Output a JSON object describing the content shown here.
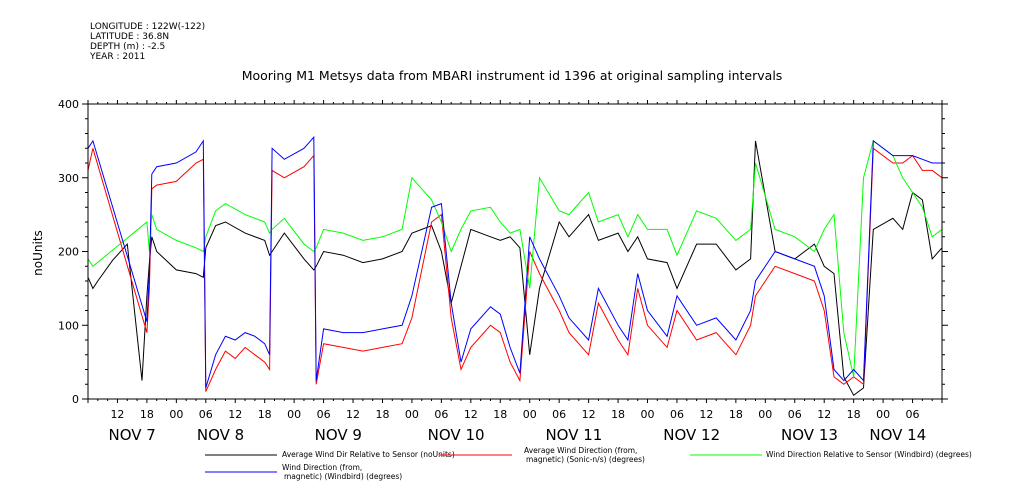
{
  "meta": {
    "longitude": "LONGITUDE : 122W(-122)",
    "latitude": "LATITUDE : 36.8N",
    "depth": "DEPTH (m) : -2.5",
    "year": "YEAR : 2011"
  },
  "chart_data": {
    "type": "line",
    "title": "Mooring M1 Metsys data from MBARI instrument id 1396 at original sampling intervals",
    "ylabel": "noUnits",
    "xlabel": "",
    "ylim": [
      0,
      400
    ],
    "yticks": [
      0,
      100,
      200,
      300,
      400
    ],
    "xlim_hours": [
      0,
      174
    ],
    "x_hour_ticks": [
      {
        "h": 6,
        "label": "12"
      },
      {
        "h": 12,
        "label": "18"
      },
      {
        "h": 18,
        "label": "00"
      },
      {
        "h": 24,
        "label": "06"
      },
      {
        "h": 30,
        "label": "12"
      },
      {
        "h": 36,
        "label": "18"
      },
      {
        "h": 42,
        "label": "00"
      },
      {
        "h": 48,
        "label": "06"
      },
      {
        "h": 54,
        "label": "12"
      },
      {
        "h": 60,
        "label": "18"
      },
      {
        "h": 66,
        "label": "00"
      },
      {
        "h": 72,
        "label": "06"
      },
      {
        "h": 78,
        "label": "12"
      },
      {
        "h": 84,
        "label": "18"
      },
      {
        "h": 90,
        "label": "00"
      },
      {
        "h": 96,
        "label": "06"
      },
      {
        "h": 102,
        "label": "12"
      },
      {
        "h": 108,
        "label": "18"
      },
      {
        "h": 114,
        "label": "00"
      },
      {
        "h": 120,
        "label": "06"
      },
      {
        "h": 126,
        "label": "12"
      },
      {
        "h": 132,
        "label": "18"
      },
      {
        "h": 138,
        "label": "00"
      },
      {
        "h": 144,
        "label": "06"
      },
      {
        "h": 150,
        "label": "12"
      },
      {
        "h": 156,
        "label": "18"
      },
      {
        "h": 162,
        "label": "00"
      },
      {
        "h": 168,
        "label": "06"
      }
    ],
    "day_labels": [
      {
        "h": 9,
        "label": "NOV  7"
      },
      {
        "h": 27,
        "label": "NOV  8"
      },
      {
        "h": 51,
        "label": "NOV  9"
      },
      {
        "h": 75,
        "label": "NOV 10"
      },
      {
        "h": 99,
        "label": "NOV 11"
      },
      {
        "h": 123,
        "label": "NOV 12"
      },
      {
        "h": 147,
        "label": "NOV 13"
      },
      {
        "h": 165,
        "label": "NOV 14"
      }
    ],
    "legend": [
      {
        "label": "Average Wind Dir Relative to Sensor (noUnits)",
        "color": "#000000"
      },
      {
        "label": "Average Wind Direction (from, magnetic) (Sonic-n/s) (degrees)",
        "color": "#ff0000"
      },
      {
        "label": "Wind Direction Relative to Sensor (Windbird) (degrees)",
        "color": "#00ff00"
      },
      {
        "label": "Wind Direction (from, magnetic) (Windbird) (degrees)",
        "color": "#0000ff"
      }
    ],
    "series": [
      {
        "name": "Average Wind Dir Relative to Sensor (noUnits)",
        "color": "#000000",
        "x": [
          0,
          1,
          2,
          5,
          8,
          11,
          12,
          12.5,
          13,
          14,
          18,
          22,
          23.5,
          24,
          26,
          28,
          32,
          36,
          37,
          37.5,
          40,
          44,
          46,
          46.5,
          48,
          52,
          56,
          60,
          64,
          66,
          70,
          72,
          74,
          76,
          78,
          82,
          84,
          86,
          88,
          90,
          92,
          96,
          98,
          102,
          104,
          108,
          110,
          112,
          114,
          118,
          120,
          124,
          128,
          132,
          135,
          136,
          140,
          144,
          148,
          150,
          152,
          154,
          156,
          158,
          160,
          164,
          166,
          168,
          170,
          172,
          174
        ],
        "y": [
          165,
          150,
          160,
          188,
          210,
          25,
          140,
          185,
          220,
          200,
          175,
          170,
          165,
          205,
          235,
          240,
          225,
          215,
          195,
          200,
          225,
          190,
          175,
          180,
          200,
          195,
          185,
          190,
          200,
          225,
          235,
          200,
          130,
          180,
          230,
          220,
          215,
          220,
          205,
          60,
          150,
          240,
          220,
          250,
          215,
          225,
          200,
          220,
          190,
          185,
          150,
          210,
          210,
          175,
          190,
          350,
          200,
          190,
          210,
          180,
          170,
          30,
          5,
          15,
          230,
          245,
          230,
          280,
          270,
          190,
          205
        ]
      },
      {
        "name": "Average Wind Direction (from, magnetic) (Sonic-n/s) (degrees)",
        "color": "#ff0000",
        "x": [
          0,
          1,
          12,
          12.5,
          13,
          14,
          18,
          22,
          23.5,
          24,
          26,
          28,
          30,
          32,
          34,
          36,
          37,
          37.5,
          40,
          44,
          46,
          46.5,
          48,
          52,
          56,
          60,
          64,
          66,
          70,
          72,
          74,
          76,
          78,
          82,
          84,
          86,
          88,
          90,
          92,
          96,
          98,
          102,
          104,
          108,
          110,
          112,
          114,
          118,
          120,
          124,
          128,
          132,
          135,
          136,
          140,
          144,
          148,
          150,
          152,
          154,
          156,
          158,
          160,
          164,
          166,
          168,
          170,
          172,
          174
        ],
        "y": [
          310,
          340,
          90,
          150,
          285,
          290,
          295,
          320,
          325,
          10,
          40,
          65,
          55,
          70,
          60,
          50,
          40,
          310,
          300,
          315,
          330,
          20,
          75,
          70,
          65,
          70,
          75,
          110,
          240,
          250,
          110,
          40,
          70,
          100,
          90,
          50,
          25,
          200,
          170,
          120,
          90,
          60,
          130,
          80,
          60,
          150,
          100,
          70,
          120,
          80,
          90,
          60,
          100,
          140,
          180,
          170,
          160,
          120,
          30,
          20,
          30,
          20,
          340,
          320,
          320,
          330,
          310,
          310,
          300
        ]
      },
      {
        "name": "Wind Direction Relative to Sensor (Windbird) (degrees)",
        "color": "#00ff00",
        "x": [
          0,
          1,
          12,
          12.5,
          13,
          14,
          18,
          22,
          23.5,
          24,
          26,
          28,
          32,
          36,
          37,
          37.5,
          40,
          44,
          46,
          46.5,
          48,
          52,
          56,
          60,
          64,
          66,
          70,
          72,
          74,
          76,
          78,
          82,
          84,
          86,
          88,
          90,
          92,
          96,
          98,
          102,
          104,
          108,
          110,
          112,
          114,
          118,
          120,
          124,
          128,
          132,
          135,
          136,
          140,
          144,
          148,
          150,
          152,
          154,
          156,
          158,
          160,
          164,
          166,
          168,
          170,
          172,
          174
        ],
        "y": [
          190,
          180,
          240,
          200,
          250,
          230,
          215,
          205,
          200,
          220,
          255,
          265,
          250,
          240,
          225,
          230,
          245,
          210,
          200,
          205,
          230,
          225,
          215,
          220,
          230,
          300,
          270,
          240,
          200,
          230,
          255,
          260,
          240,
          225,
          230,
          150,
          300,
          255,
          250,
          280,
          240,
          250,
          220,
          250,
          230,
          230,
          195,
          255,
          245,
          215,
          230,
          320,
          230,
          220,
          200,
          230,
          250,
          90,
          30,
          300,
          350,
          330,
          300,
          280,
          260,
          220,
          230
        ]
      },
      {
        "name": "Wind Direction (from, magnetic) (Windbird) (degrees)",
        "color": "#0000ff",
        "x": [
          0,
          1,
          12,
          12.5,
          13,
          14,
          18,
          22,
          23.5,
          24,
          26,
          28,
          30,
          32,
          34,
          36,
          37,
          37.5,
          40,
          44,
          46,
          46.5,
          48,
          52,
          56,
          60,
          64,
          66,
          70,
          72,
          74,
          76,
          78,
          82,
          84,
          86,
          88,
          90,
          92,
          96,
          98,
          102,
          104,
          108,
          110,
          112,
          114,
          118,
          120,
          124,
          128,
          132,
          135,
          136,
          140,
          144,
          148,
          150,
          152,
          154,
          156,
          158,
          160,
          164,
          166,
          168,
          170,
          172,
          174
        ],
        "y": [
          340,
          350,
          105,
          170,
          305,
          315,
          320,
          335,
          350,
          15,
          60,
          85,
          80,
          90,
          85,
          75,
          60,
          340,
          325,
          340,
          355,
          25,
          95,
          90,
          90,
          95,
          100,
          140,
          260,
          265,
          130,
          50,
          95,
          125,
          115,
          70,
          35,
          220,
          190,
          140,
          110,
          80,
          150,
          100,
          80,
          170,
          120,
          85,
          140,
          100,
          110,
          80,
          120,
          160,
          200,
          190,
          180,
          140,
          40,
          25,
          40,
          25,
          350,
          330,
          330,
          330,
          325,
          320,
          320
        ]
      }
    ]
  }
}
